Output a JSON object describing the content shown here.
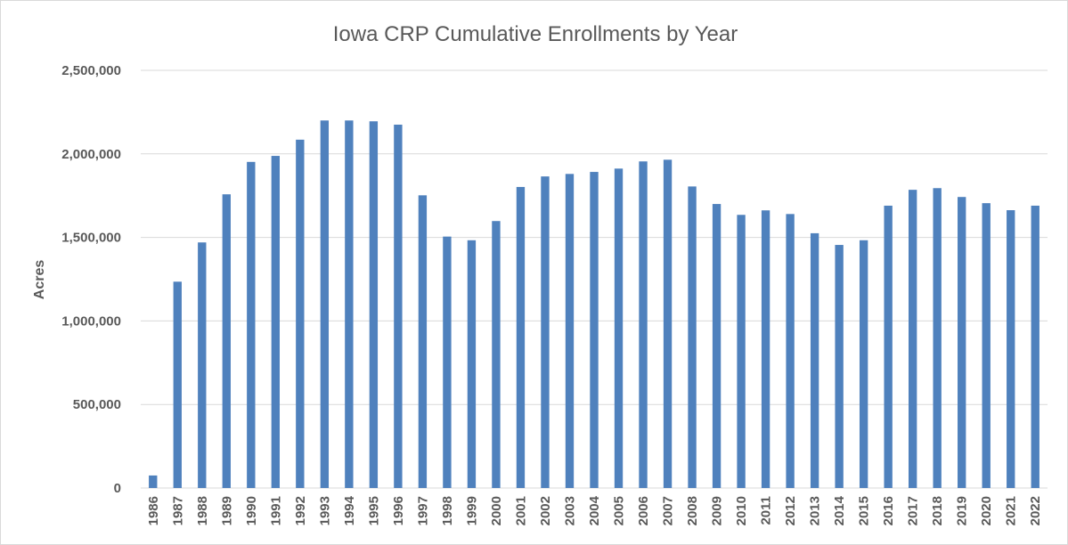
{
  "chart_data": {
    "type": "bar",
    "title": "Iowa CRP Cumulative Enrollments by Year",
    "xlabel": "",
    "ylabel": "Acres",
    "ylim": [
      0,
      2500000
    ],
    "yticks": [
      0,
      500000,
      1000000,
      1500000,
      2000000,
      2500000
    ],
    "ytick_labels": [
      "0",
      "500,000",
      "1,000,000",
      "1,500,000",
      "2,000,000",
      "2,500,000"
    ],
    "grid": true,
    "bar_color": "#4f81bd",
    "categories": [
      "1986",
      "1987",
      "1988",
      "1989",
      "1990",
      "1991",
      "1992",
      "1993",
      "1994",
      "1995",
      "1996",
      "1997",
      "1998",
      "1999",
      "2000",
      "2001",
      "2002",
      "2003",
      "2004",
      "2005",
      "2006",
      "2007",
      "2008",
      "2009",
      "2010",
      "2011",
      "2012",
      "2013",
      "2014",
      "2015",
      "2016",
      "2017",
      "2018",
      "2019",
      "2020",
      "2021",
      "2022"
    ],
    "values": [
      75000,
      1235000,
      1470000,
      1758000,
      1952000,
      1988000,
      2085000,
      2200000,
      2200000,
      2195000,
      2175000,
      1752000,
      1505000,
      1483000,
      1598000,
      1802000,
      1865000,
      1880000,
      1892000,
      1912000,
      1955000,
      1965000,
      1805000,
      1700000,
      1635000,
      1662000,
      1640000,
      1525000,
      1455000,
      1483000,
      1690000,
      1785000,
      1795000,
      1742000,
      1705000,
      1663000,
      1690000
    ]
  }
}
